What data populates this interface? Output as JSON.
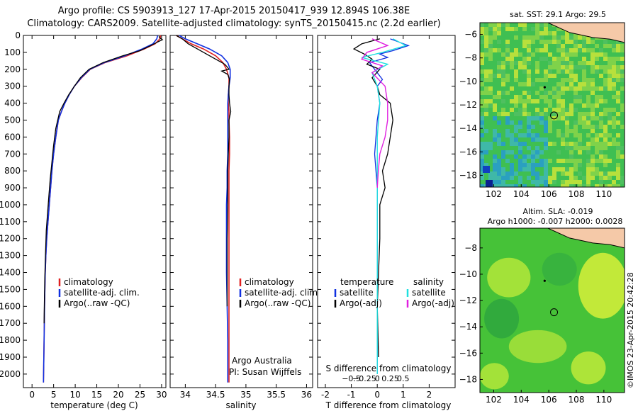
{
  "header": {
    "line1": "Argo profile: CS 5903913_127 17-Apr-2015 20150417_939 12.894S 106.38E",
    "line2": "Climatology: CARS2009. Satellite-adjusted climatology: synTS_20150415.nc (2.2d earlier)"
  },
  "colors": {
    "climatology": "#e02020",
    "satellite": "#1030e0",
    "argo": "#000000",
    "satellite_salinity": "#20e0e0",
    "argo_salinity": "#e020e0",
    "land": "#f5c9a8"
  },
  "credits": {
    "argo_australia": "Argo Australia",
    "pi": "PI: Susan Wijffels",
    "stamp": "©IMOS 23-Apr-2015 20:42:28"
  },
  "chart_data": [
    {
      "type": "line",
      "id": "temperature",
      "xlabel": "temperature (deg C)",
      "xlim": [
        -2,
        31
      ],
      "xticks": [
        0,
        5,
        10,
        15,
        20,
        25,
        30
      ],
      "ylim": [
        2080,
        0
      ],
      "yticks": [
        0,
        100,
        200,
        300,
        400,
        500,
        600,
        700,
        800,
        900,
        1000,
        1100,
        1200,
        1300,
        1400,
        1500,
        1600,
        1700,
        1800,
        1900,
        2000
      ],
      "legend": [
        "climatology",
        "satellite-adj. clim.",
        "Argo(..raw -QC)"
      ],
      "series": [
        {
          "name": "climatology",
          "x": [
            29.8,
            29.6,
            28.5,
            26,
            22,
            17,
            13.5,
            11.5,
            9.8,
            8.6,
            7.6,
            6.8,
            6.1,
            5.5,
            5,
            4.6,
            4.3,
            4,
            3.7,
            3.4,
            3.2,
            3.05,
            2.9,
            2.8,
            2.65
          ],
          "y": [
            0,
            20,
            50,
            80,
            120,
            160,
            200,
            250,
            300,
            350,
            400,
            450,
            500,
            600,
            700,
            800,
            900,
            1000,
            1100,
            1200,
            1300,
            1400,
            1600,
            1800,
            2050
          ]
        },
        {
          "name": "satellite-adj. clim.",
          "x": [
            29.1,
            28.9,
            28,
            25.5,
            21.5,
            16.8,
            13.4,
            11.4,
            9.8,
            8.6,
            7.6,
            6.8,
            6.1,
            5.5,
            5,
            4.6,
            4.3,
            4,
            3.7,
            3.4,
            3.2,
            3.05,
            2.9,
            2.8,
            2.65
          ],
          "y": [
            0,
            20,
            50,
            80,
            120,
            160,
            200,
            250,
            300,
            350,
            400,
            450,
            500,
            600,
            700,
            800,
            900,
            1000,
            1100,
            1200,
            1300,
            1400,
            1600,
            1800,
            2050
          ]
        },
        {
          "name": "Argo(..raw -QC)",
          "x": [
            29.4,
            29.6,
            30.2,
            29,
            27.5,
            25,
            21,
            16.5,
            13.2,
            11.2,
            9.8,
            8.5,
            7.4,
            6.4,
            5.5,
            5,
            4.6,
            4.2,
            3.9,
            3.6,
            3.3,
            3.1,
            2.95,
            2.85,
            2.8
          ],
          "y": [
            5,
            15,
            25,
            40,
            60,
            90,
            120,
            160,
            200,
            250,
            300,
            350,
            400,
            450,
            550,
            650,
            750,
            850,
            950,
            1050,
            1150,
            1300,
            1450,
            1600,
            1700
          ]
        }
      ]
    },
    {
      "type": "line",
      "id": "salinity",
      "xlabel": "salinity",
      "xlim": [
        33.75,
        36.1
      ],
      "xticks": [
        34,
        34.5,
        35,
        35.5,
        36
      ],
      "ylim": [
        2080,
        0
      ],
      "legend": [
        "climatology",
        "satellite-adj. clim.",
        "Argo(..raw -QC)"
      ],
      "series": [
        {
          "name": "climatology",
          "x": [
            33.85,
            33.95,
            34.1,
            34.3,
            34.5,
            34.62,
            34.68,
            34.72,
            34.72,
            34.71,
            34.71,
            34.72,
            34.72,
            34.73,
            34.73,
            34.72,
            34.72,
            34.72,
            34.72,
            34.72,
            34.72,
            34.72,
            34.72,
            34.72
          ],
          "y": [
            0,
            20,
            50,
            80,
            120,
            160,
            200,
            250,
            300,
            350,
            400,
            450,
            500,
            600,
            700,
            800,
            900,
            1000,
            1200,
            1400,
            1600,
            1800,
            1900,
            2050
          ]
        },
        {
          "name": "satellite-adj. clim.",
          "x": [
            33.9,
            34.0,
            34.2,
            34.4,
            34.6,
            34.7,
            34.74,
            34.74,
            34.72,
            34.71,
            34.7,
            34.7,
            34.7,
            34.7,
            34.7,
            34.69,
            34.69,
            34.68,
            34.68,
            34.68,
            34.69,
            34.7,
            34.7,
            34.7
          ],
          "y": [
            0,
            20,
            50,
            80,
            120,
            160,
            200,
            250,
            300,
            350,
            400,
            450,
            500,
            600,
            700,
            800,
            900,
            1000,
            1200,
            1400,
            1600,
            1800,
            1900,
            2050
          ]
        },
        {
          "name": "Argo(..raw -QC)",
          "x": [
            33.85,
            33.95,
            34.05,
            34.2,
            34.4,
            34.55,
            34.65,
            34.7,
            34.72,
            34.6,
            34.7,
            34.73,
            34.72,
            34.72,
            34.73,
            34.75,
            34.72,
            34.72,
            34.72,
            34.71,
            34.7,
            34.7,
            34.7,
            34.69,
            34.69,
            34.69
          ],
          "y": [
            0,
            20,
            50,
            80,
            120,
            150,
            170,
            190,
            200,
            210,
            230,
            260,
            300,
            350,
            400,
            450,
            500,
            550,
            600,
            700,
            800,
            900,
            1000,
            1200,
            1400,
            1600
          ]
        }
      ]
    },
    {
      "type": "line",
      "id": "differences",
      "xlabel": "T difference from climatology",
      "xlabel_top": "S difference from climatology",
      "xlim": [
        -2.3,
        3
      ],
      "xticks": [
        -2,
        -1,
        0,
        1,
        2
      ],
      "xticks_top": [
        -0.5,
        -0.25,
        0,
        0.25,
        0.5
      ],
      "ylim": [
        2080,
        0
      ],
      "legend_t_title": "temperature",
      "legend_s_title": "salinity",
      "legend": [
        "satellite",
        "Argo(-adj)",
        "satellite",
        "Argo(-adj)"
      ],
      "series": [
        {
          "name": "satellite",
          "x": [
            0.5,
            1.2,
            0.6,
            0.1,
            0.4,
            -0.3,
            -0.1,
            0.2,
            0,
            0.1,
            0,
            -0.1,
            0,
            0,
            0,
            0
          ],
          "y": [
            20,
            60,
            90,
            110,
            130,
            160,
            200,
            260,
            300,
            400,
            500,
            700,
            900,
            1200,
            1600,
            2000
          ]
        },
        {
          "name": "Argo(-adj)",
          "x": [
            0.1,
            -0.6,
            -0.9,
            -0.5,
            -0.2,
            -0.4,
            0.1,
            -0.2,
            0,
            0.1,
            0.5,
            0.6,
            0.5,
            0.4,
            0.2,
            0.3,
            0.1,
            0.1,
            0,
            0.05
          ],
          "y": [
            20,
            50,
            80,
            110,
            140,
            170,
            200,
            250,
            300,
            350,
            400,
            500,
            600,
            700,
            800,
            900,
            1000,
            1200,
            1600,
            1900
          ]
        },
        {
          "name": "satellite",
          "x": [
            0.3,
            0.55,
            0.1,
            -0.3,
            0.2,
            -0.1,
            0,
            0.05,
            0,
            0,
            0,
            0,
            0
          ],
          "y": [
            20,
            60,
            100,
            130,
            170,
            220,
            300,
            400,
            600,
            800,
            1200,
            1600,
            2000
          ]
        },
        {
          "name": "Argo(-adj)",
          "x": [
            -0.1,
            0.2,
            -0.2,
            -0.3,
            0.1,
            -0.1,
            0.15,
            0.2,
            0.2,
            0.15,
            0.05,
            0.02,
            0
          ],
          "y": [
            20,
            60,
            100,
            140,
            180,
            220,
            300,
            400,
            500,
            600,
            700,
            800,
            900
          ]
        }
      ]
    },
    {
      "type": "heatmap",
      "id": "sst-map",
      "title": "sat. SST: 29.1  Argo: 29.5",
      "xlim": [
        101,
        111.5
      ],
      "ylim": [
        -19,
        -5
      ],
      "xticks": [
        102,
        104,
        106,
        108,
        110
      ],
      "yticks": [
        -6,
        -8,
        -10,
        -12,
        -14,
        -16,
        -18
      ],
      "float_position": [
        106.38,
        -12.894
      ]
    },
    {
      "type": "heatmap",
      "id": "sla-map",
      "title": "Altim. SLA: -0.019",
      "subtitle": "Argo h1000: -0.007  h2000: 0.0028",
      "xlim": [
        101,
        111.5
      ],
      "ylim": [
        -19,
        -6.5
      ],
      "xticks": [
        102,
        104,
        106,
        108,
        110
      ],
      "yticks": [
        -8,
        -10,
        -12,
        -14,
        -16,
        -18
      ],
      "float_position": [
        106.38,
        -12.894
      ]
    }
  ]
}
